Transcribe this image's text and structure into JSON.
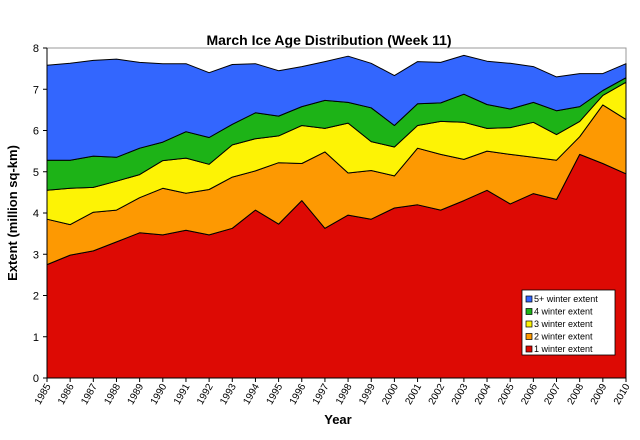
{
  "chart_data": {
    "type": "area",
    "stacked": true,
    "title": "March Ice Age Distribution (Week 11)",
    "xlabel": "Year",
    "ylabel": "Extent (million sq-km)",
    "ylim": [
      0,
      8
    ],
    "yticks": [
      0,
      1,
      2,
      3,
      4,
      5,
      6,
      7,
      8
    ],
    "grid": false,
    "legend": "bottom-right",
    "x": [
      1985,
      1986,
      1987,
      1988,
      1989,
      1990,
      1991,
      1992,
      1993,
      1994,
      1995,
      1996,
      1997,
      1998,
      1999,
      2000,
      2001,
      2002,
      2003,
      2004,
      2005,
      2006,
      2007,
      2008,
      2009,
      2010
    ],
    "series": [
      {
        "name": "1 winter extent",
        "color": "#dd0a04",
        "values": [
          2.75,
          2.98,
          3.08,
          3.3,
          3.52,
          3.47,
          3.58,
          3.47,
          3.63,
          4.07,
          3.73,
          4.3,
          3.63,
          3.95,
          3.85,
          4.12,
          4.2,
          4.07,
          4.3,
          4.55,
          4.22,
          4.47,
          4.33,
          5.42,
          5.2,
          4.95
        ]
      },
      {
        "name": "2 winter extent",
        "color": "#fd9902",
        "values": [
          1.1,
          0.74,
          0.94,
          0.77,
          0.85,
          1.13,
          0.9,
          1.1,
          1.24,
          0.95,
          1.49,
          0.9,
          1.85,
          1.02,
          1.18,
          0.78,
          1.37,
          1.35,
          1.0,
          0.95,
          1.2,
          0.88,
          0.95,
          0.43,
          1.42,
          1.32
        ]
      },
      {
        "name": "3 winter extent",
        "color": "#fdf305",
        "values": [
          0.7,
          0.88,
          0.6,
          0.7,
          0.56,
          0.67,
          0.85,
          0.61,
          0.78,
          0.78,
          0.65,
          0.92,
          0.57,
          1.21,
          0.7,
          0.7,
          0.55,
          0.8,
          0.9,
          0.55,
          0.65,
          0.85,
          0.62,
          0.37,
          0.23,
          0.9
        ]
      },
      {
        "name": "4 winter extent",
        "color": "#1db317",
        "values": [
          0.73,
          0.68,
          0.76,
          0.58,
          0.64,
          0.45,
          0.64,
          0.65,
          0.5,
          0.63,
          0.48,
          0.46,
          0.68,
          0.5,
          0.82,
          0.52,
          0.53,
          0.45,
          0.68,
          0.58,
          0.45,
          0.48,
          0.58,
          0.36,
          0.12,
          0.11
        ]
      },
      {
        "name": "5+ winter extent",
        "color": "#3366fe",
        "values": [
          2.3,
          2.35,
          2.32,
          2.38,
          2.08,
          1.9,
          1.65,
          1.57,
          1.45,
          1.19,
          1.1,
          0.97,
          0.94,
          1.12,
          1.08,
          1.21,
          1.02,
          0.98,
          0.94,
          1.05,
          1.11,
          0.87,
          0.82,
          0.8,
          0.41,
          0.34
        ]
      }
    ]
  }
}
